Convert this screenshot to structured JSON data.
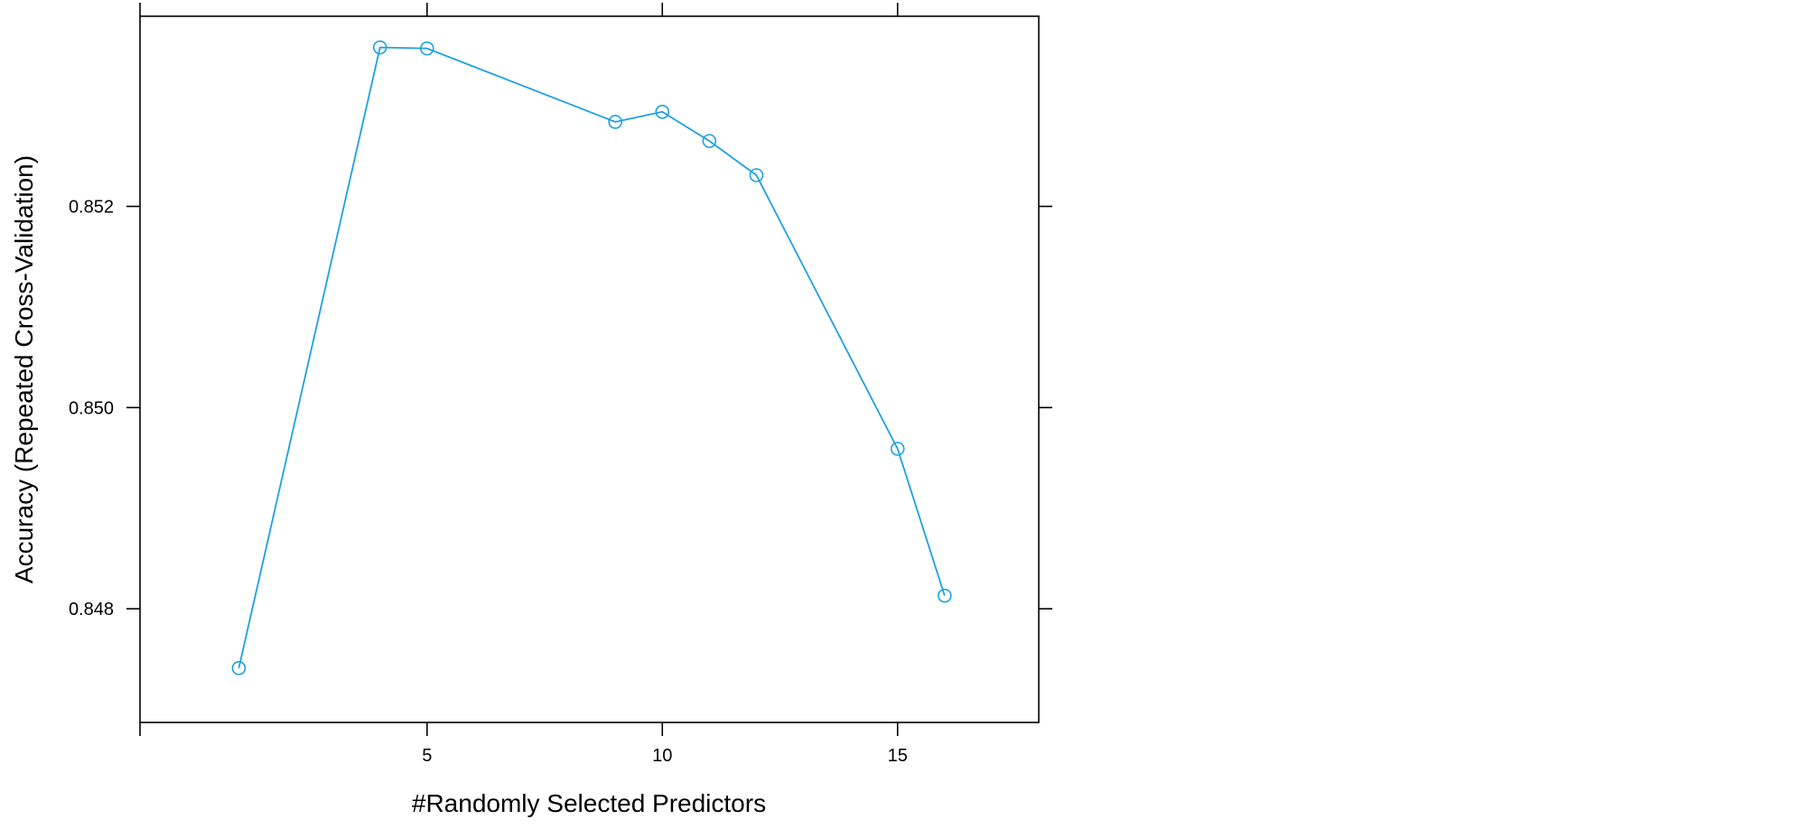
{
  "chart_data": {
    "type": "line",
    "title": "",
    "xlabel": "#Randomly Selected Predictors",
    "ylabel": "Accuracy (Repeated Cross-Validation)",
    "xlim": [
      -1.1,
      18.0
    ],
    "ylim": [
      0.84687,
      0.85389
    ],
    "x_ticks": [
      5,
      10,
      15
    ],
    "x_tick_labels": [
      "5",
      "10",
      "15"
    ],
    "y_ticks": [
      0.848,
      0.85,
      0.852
    ],
    "y_tick_labels": [
      "0.848",
      "0.850",
      "0.852"
    ],
    "grid": false,
    "series": [
      {
        "color": "#1EA0E0",
        "marker": "open-circle",
        "x": [
          1,
          4,
          5,
          9,
          10,
          11,
          12,
          15,
          16
        ],
        "y": [
          0.84741,
          0.85358,
          0.85357,
          0.85284,
          0.85294,
          0.85265,
          0.85231,
          0.84959,
          0.84813
        ]
      }
    ]
  }
}
